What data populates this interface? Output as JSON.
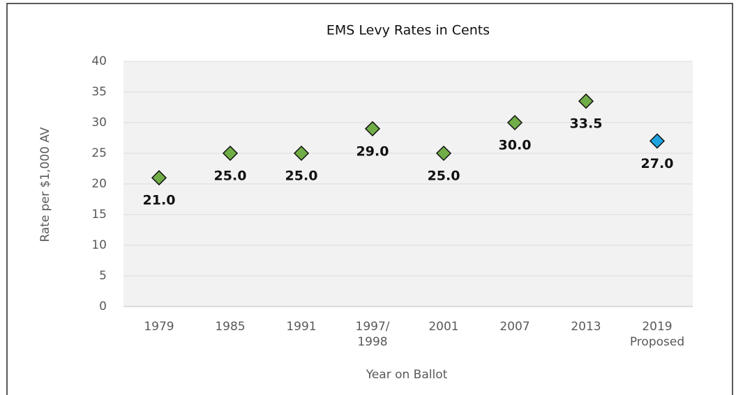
{
  "chart_data": {
    "type": "scatter",
    "title": "EMS Levy Rates in Cents",
    "xlabel": "Year on Ballot",
    "ylabel": "Rate per $1,000 AV",
    "categories": [
      "1979",
      "1985",
      "1991",
      "1997/\n1998",
      "2001",
      "2007",
      "2013",
      "2019\nProposed"
    ],
    "series": [
      {
        "values": [
          21,
          25,
          25,
          29,
          25,
          30,
          33.5,
          27
        ],
        "value_labels": [
          "21.0",
          "25.0",
          "25.0",
          "29.0",
          "25.0",
          "30.0",
          "33.5",
          "27.0"
        ],
        "colors": [
          "#70ad47",
          "#70ad47",
          "#70ad47",
          "#70ad47",
          "#70ad47",
          "#70ad47",
          "#70ad47",
          "#1fa3e0"
        ]
      }
    ],
    "ylim": [
      0,
      40
    ],
    "yticks": [
      0,
      5,
      10,
      15,
      20,
      25,
      30,
      35,
      40
    ],
    "grid": true
  }
}
